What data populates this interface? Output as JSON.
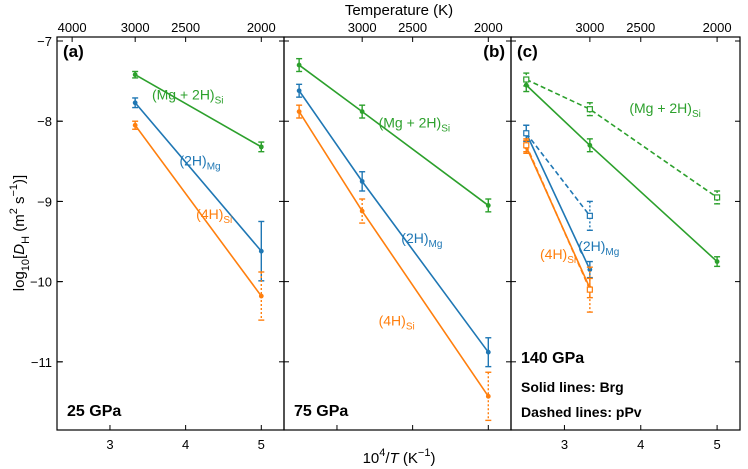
{
  "chart_data": {
    "type": "line",
    "title": "",
    "top_axis_title": "Temperature (K)",
    "x_axis_title_parts": [
      "10",
      "4",
      "/",
      "T",
      " (K",
      "−1",
      ")"
    ],
    "y_axis_title_parts": [
      "log",
      "10",
      "[",
      "D",
      "H",
      " (m",
      "2",
      " s",
      "−1",
      ")]"
    ],
    "colors": {
      "mg2h": "#2ca02c",
      "mg": "#1f77b4",
      "si": "#ff7f0e"
    },
    "panels": [
      {
        "label": "(a)",
        "pressure": "25 GPa",
        "notes": [],
        "xlim": [
          2.3,
          5.3
        ],
        "x_ticks": [
          3,
          4,
          5
        ],
        "top_ticks": [
          {
            "T": 4000,
            "label": "4000"
          },
          {
            "T": 3000,
            "label": "3000"
          },
          {
            "T": 2500,
            "label": "2500"
          },
          {
            "T": 2000,
            "label": "2000"
          }
        ],
        "series": [
          {
            "key": "mg2h",
            "name_base": "(Mg + 2H)",
            "name_sub": "Si",
            "dash": false,
            "open": false,
            "x": [
              3.333,
              5.0
            ],
            "y": [
              -7.42,
              -8.32
            ],
            "err": [
              0.04,
              0.06
            ],
            "label_at": [
              -7.54,
              -7.73
            ]
          },
          {
            "key": "mg",
            "name_base": "(2H)",
            "name_sub": "Mg",
            "dash": false,
            "open": false,
            "x": [
              3.333,
              5.0
            ],
            "y": [
              -7.77,
              -9.62
            ],
            "err": [
              0.06,
              0.37
            ],
            "label_at": [
              -8.42,
              -8.55
            ]
          },
          {
            "key": "si",
            "name_base": "(4H)",
            "name_sub": "Si",
            "dash": false,
            "open": false,
            "x": [
              3.333,
              5.0
            ],
            "y": [
              -8.05,
              -10.18
            ],
            "err": [
              0.05,
              0.3
            ],
            "label_at": [
              -9.08,
              -9.22
            ]
          }
        ]
      },
      {
        "label": "(b)",
        "pressure": "75 GPa",
        "notes": [],
        "xlim": [
          2.3,
          5.3
        ],
        "x_ticks": [],
        "top_ticks": [
          {
            "T": 3000,
            "label": "3000"
          },
          {
            "T": 2500,
            "label": "2500"
          },
          {
            "T": 2000,
            "label": "2000"
          }
        ],
        "series": [
          {
            "key": "mg2h",
            "name_base": "(Mg + 2H)",
            "name_sub": "Si",
            "dash": false,
            "open": false,
            "x": [
              2.5,
              3.333,
              5.0
            ],
            "y": [
              -7.3,
              -7.88,
              -9.05
            ],
            "err": [
              0.08,
              0.08,
              0.08
            ],
            "label_at": [
              3.55,
              -8.08
            ]
          },
          {
            "key": "mg",
            "name_base": "(2H)",
            "name_sub": "Mg",
            "dash": false,
            "open": false,
            "x": [
              2.5,
              3.333,
              5.0
            ],
            "y": [
              -7.62,
              -8.75,
              -10.88
            ],
            "err": [
              0.08,
              0.12,
              0.18
            ],
            "label_at": [
              3.85,
              -9.52
            ]
          },
          {
            "key": "si",
            "name_base": "(4H)",
            "name_sub": "Si",
            "dash": false,
            "open": false,
            "x": [
              2.5,
              3.333,
              5.0
            ],
            "y": [
              -7.88,
              -9.12,
              -11.43
            ],
            "err": [
              0.08,
              0.15,
              0.3
            ],
            "label_at": [
              3.55,
              -10.55
            ]
          }
        ]
      },
      {
        "label": "(c)",
        "pressure": "140 GPa",
        "notes": [
          "Solid lines: Brg",
          "Dashed lines: pPv"
        ],
        "xlim": [
          2.3,
          5.3
        ],
        "x_ticks": [
          3,
          4,
          5
        ],
        "top_ticks": [
          {
            "T": 3000,
            "label": "3000"
          },
          {
            "T": 2500,
            "label": "2500"
          },
          {
            "T": 2000,
            "label": "2000"
          }
        ],
        "series": [
          {
            "key": "mg2h",
            "name_base": "(Mg + 2H)",
            "name_sub": "Si",
            "dash": false,
            "open": false,
            "x": [
              2.5,
              3.333,
              5.0
            ],
            "y": [
              -7.55,
              -8.3,
              -9.75
            ],
            "err": [
              0.08,
              0.08,
              0.06
            ],
            "label_at": null
          },
          {
            "key": "mg2h",
            "name_base": "(Mg + 2H)",
            "name_sub": "Si",
            "dash": true,
            "open": true,
            "x": [
              2.5,
              3.333,
              5.0
            ],
            "y": [
              -7.48,
              -7.85,
              -8.95
            ],
            "err": [
              0.08,
              0.08,
              0.08
            ],
            "label_at": [
              3.85,
              -7.9
            ]
          },
          {
            "key": "mg",
            "name_base": "(2H)",
            "name_sub": "Mg",
            "dash": false,
            "open": false,
            "x": [
              2.5,
              3.333
            ],
            "y": [
              -8.15,
              -9.85
            ],
            "err": [
              0.1,
              0.1
            ],
            "label_at": null
          },
          {
            "key": "mg",
            "name_base": "(2H)",
            "name_sub": "Mg",
            "dash": true,
            "open": true,
            "x": [
              2.5,
              3.333
            ],
            "y": [
              -8.15,
              -9.18
            ],
            "err": [
              0.1,
              0.18
            ],
            "label_at": [
              3.18,
              -9.62
            ]
          },
          {
            "key": "si",
            "name_base": "(4H)",
            "name_sub": "Si",
            "dash": false,
            "open": false,
            "x": [
              2.5,
              3.333
            ],
            "y": [
              -8.32,
              -10.08
            ],
            "err": [
              0.08,
              0.12
            ],
            "label_at": [
              2.68,
              -9.72
            ]
          },
          {
            "key": "si",
            "name_base": "(4H)",
            "name_sub": "Si",
            "dash": true,
            "open": true,
            "x": [
              2.5,
              3.333
            ],
            "y": [
              -8.3,
              -10.1
            ],
            "err": [
              0.08,
              0.28
            ],
            "label_at": null
          }
        ]
      }
    ],
    "y_ticks": [
      -7,
      -8,
      -9,
      -10,
      -11
    ],
    "y_tick_labels": [
      "−7",
      "−8",
      "−9",
      "−10",
      "−11"
    ],
    "ylim": [
      -11.85,
      -6.95
    ]
  }
}
